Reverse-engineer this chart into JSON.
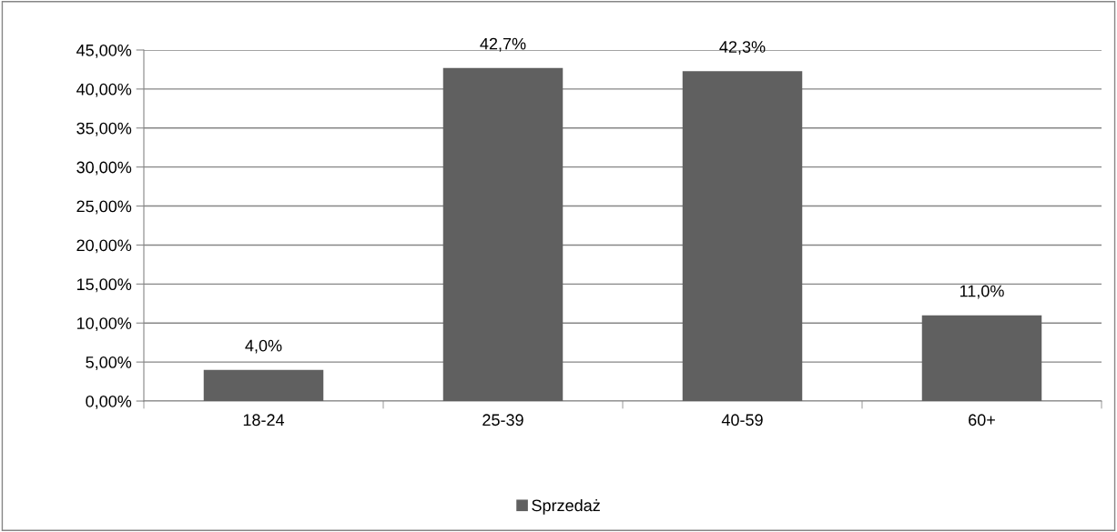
{
  "chart_data": {
    "type": "bar",
    "categories": [
      "18-24",
      "25-39",
      "40-59",
      "60+"
    ],
    "series": [
      {
        "name": "Sprzedaż",
        "color": "#606060",
        "values": [
          4.0,
          42.7,
          42.3,
          11.0
        ],
        "value_labels": [
          "4,0%",
          "42,7%",
          "42,3%",
          "11,0%"
        ]
      }
    ],
    "ylim": [
      0,
      45
    ],
    "yticks": [
      {
        "value": 0,
        "label": "0,00%"
      },
      {
        "value": 5,
        "label": "5,00%"
      },
      {
        "value": 10,
        "label": "10,00%"
      },
      {
        "value": 15,
        "label": "15,00%"
      },
      {
        "value": 20,
        "label": "20,00%"
      },
      {
        "value": 25,
        "label": "25,00%"
      },
      {
        "value": 30,
        "label": "30,00%"
      },
      {
        "value": 35,
        "label": "35,00%"
      },
      {
        "value": 40,
        "label": "40,00%"
      },
      {
        "value": 45,
        "label": "45,00%"
      }
    ],
    "grid": "y",
    "legend": "bottom"
  }
}
